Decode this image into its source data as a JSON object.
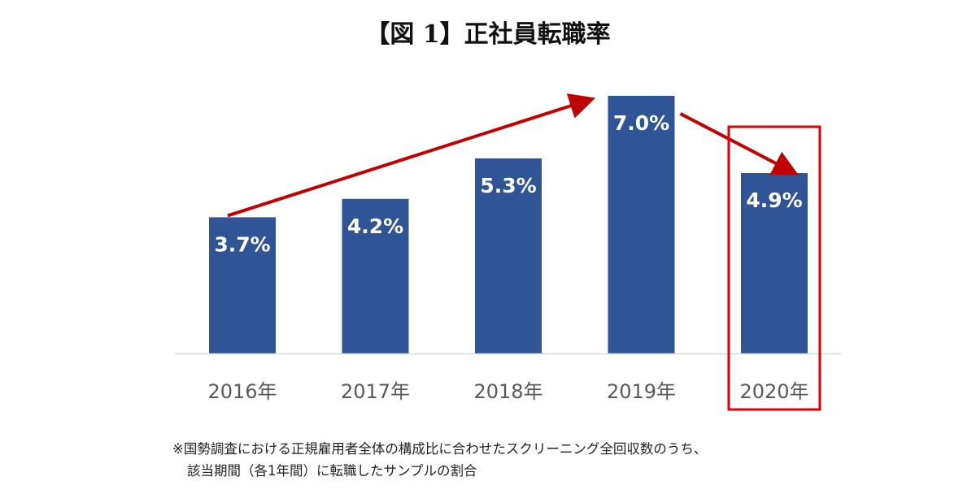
{
  "chart_data": {
    "type": "bar",
    "title": "【図 1】正社員転職率",
    "categories": [
      "2016年",
      "2017年",
      "2018年",
      "2019年",
      "2020年"
    ],
    "values": [
      3.7,
      4.2,
      5.3,
      7.0,
      4.9
    ],
    "value_labels": [
      "3.7%",
      "4.2%",
      "5.3%",
      "7.0%",
      "4.9%"
    ],
    "unit": "%",
    "ylim": [
      0,
      8.5
    ],
    "grid": false,
    "bar_color": "#2f5597",
    "arrow_color": "#c00000",
    "highlight_color": "#e00000",
    "highlight_category": "2020年",
    "footnote": [
      "※国勢調査における正規雇用者全体の構成比に合わせたスクリーニング全回収数のうち、",
      "該当期間（各1年間）に転職したサンプルの割合"
    ]
  }
}
